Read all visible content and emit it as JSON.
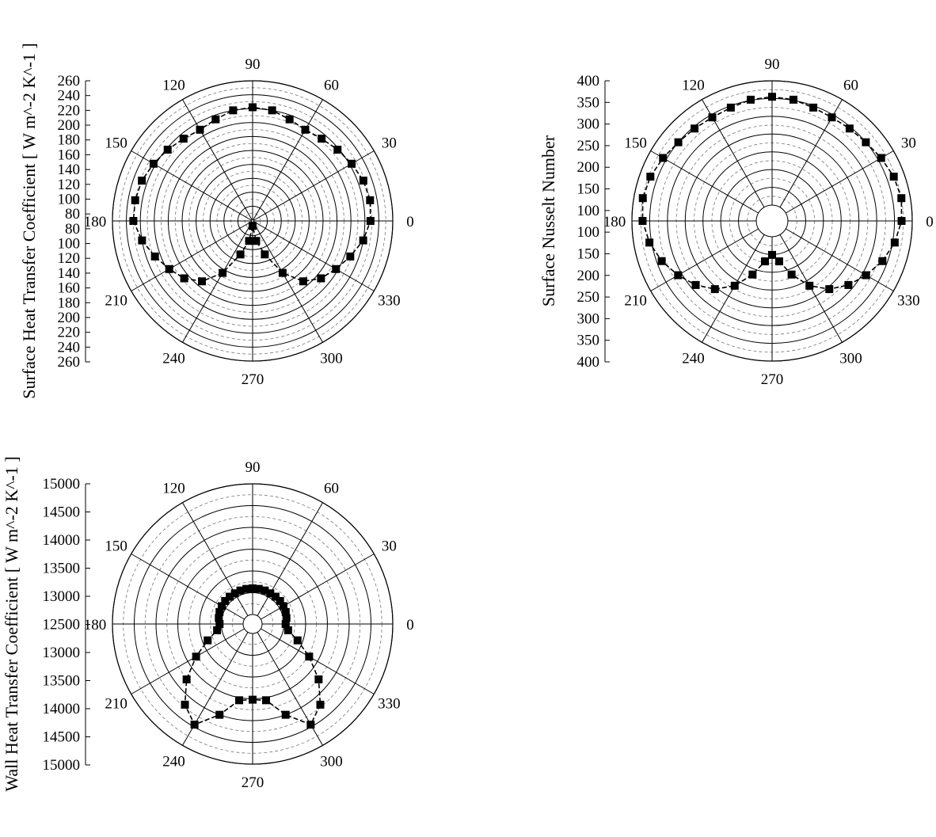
{
  "chart_data": [
    {
      "type": "scatter",
      "polar": true,
      "title": "",
      "ylabel": "Surface Heat Transfer Coefficient [ W m^-2 K^-1 ]",
      "radial_min": 60,
      "radial_max": 260,
      "radial_axis_ticks": [
        "260",
        "240",
        "220",
        "200",
        "180",
        "160",
        "140",
        "120",
        "100",
        "80",
        "80",
        "100",
        "120",
        "140",
        "160",
        "180",
        "200",
        "220",
        "240",
        "260"
      ],
      "angle_labels": [
        "0",
        "30",
        "60",
        "90",
        "120",
        "150",
        "180",
        "210",
        "240",
        "270",
        "300",
        "330"
      ],
      "grid": true,
      "series": [
        {
          "marker": "square",
          "line": "dashed",
          "theta": [
            0,
            10,
            20,
            30,
            40,
            50,
            60,
            70,
            80,
            90,
            100,
            110,
            120,
            130,
            140,
            150,
            160,
            170,
            180,
            190,
            200,
            210,
            220,
            230,
            240,
            250,
            260,
            270,
            280,
            290,
            300,
            310,
            320,
            330,
            340,
            350
          ],
          "r": [
            228,
            230,
            228,
            223,
            218,
            213,
            210,
            214,
            220,
            222,
            220,
            214,
            210,
            213,
            218,
            223,
            228,
            230,
            230,
            220,
            208,
            197,
            187,
            172,
            145,
            110,
            88,
            66,
            88,
            110,
            145,
            172,
            187,
            197,
            208,
            220
          ]
        }
      ]
    },
    {
      "type": "scatter",
      "polar": true,
      "title": "",
      "ylabel": "Surface Nusselt Number",
      "radial_min": 50,
      "radial_max": 400,
      "radial_axis_ticks": [
        "400",
        "350",
        "300",
        "250",
        "200",
        "150",
        "100",
        "100",
        "150",
        "200",
        "250",
        "300",
        "350",
        "400"
      ],
      "angle_labels": [
        "0",
        "30",
        "60",
        "90",
        "120",
        "150",
        "180",
        "210",
        "240",
        "270",
        "300",
        "330"
      ],
      "grid": true,
      "series": [
        {
          "marker": "square",
          "line": "dashed",
          "theta": [
            0,
            10,
            20,
            30,
            40,
            50,
            60,
            70,
            80,
            90,
            100,
            110,
            120,
            130,
            140,
            150,
            160,
            170,
            180,
            190,
            200,
            210,
            220,
            230,
            240,
            250,
            260,
            270,
            280,
            290,
            300,
            310,
            320,
            330,
            340,
            350
          ],
          "r": [
            370,
            375,
            370,
            360,
            350,
            345,
            342,
            345,
            352,
            355,
            352,
            345,
            342,
            345,
            350,
            360,
            370,
            375,
            370,
            356,
            336,
            311,
            286,
            256,
            216,
            166,
            121,
            101,
            121,
            166,
            216,
            256,
            286,
            311,
            336,
            356
          ]
        }
      ]
    },
    {
      "type": "scatter",
      "polar": true,
      "title": "",
      "ylabel": "Wall Heat Transfer Coefficient [ W m^-2 K^-1 ]",
      "radial_min": 12000,
      "radial_max": 15000,
      "radial_axis_ticks": [
        "15000",
        "14500",
        "14000",
        "13500",
        "13000",
        "12500",
        "13000",
        "13500",
        "14000",
        "14500",
        "15000"
      ],
      "angle_labels": [
        "0",
        "30",
        "60",
        "90",
        "120",
        "150",
        "180",
        "210",
        "240",
        "270",
        "300",
        "330"
      ],
      "grid": true,
      "series": [
        {
          "marker": "square",
          "line": "dashed",
          "theta": [
            0,
            10,
            20,
            30,
            40,
            50,
            60,
            70,
            80,
            90,
            100,
            110,
            120,
            130,
            140,
            150,
            160,
            170,
            180,
            190,
            200,
            210,
            220,
            230,
            240,
            250,
            260,
            270,
            280,
            290,
            300,
            310,
            320,
            330,
            340,
            350
          ],
          "r": [
            12540,
            12570,
            12590,
            12600,
            12605,
            12600,
            12595,
            12600,
            12600,
            12600,
            12600,
            12600,
            12595,
            12600,
            12605,
            12600,
            12590,
            12570,
            12540,
            12610,
            12880,
            13280,
            13760,
            14200,
            14450,
            14000,
            13560,
            13520,
            13560,
            14000,
            14450,
            14200,
            13760,
            13280,
            12880,
            12610
          ]
        }
      ]
    }
  ]
}
